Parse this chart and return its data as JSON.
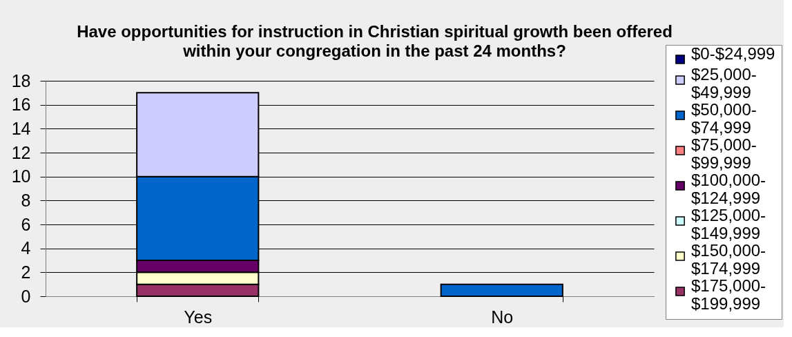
{
  "chart_data": {
    "type": "bar",
    "title": "Have opportunities for instruction in Christian spiritual growth been offered within your congregation in the past 24 months?",
    "categories": [
      "Yes",
      "No"
    ],
    "stacked": true,
    "series": [
      {
        "name": "$175,000-$199,999",
        "color": "#993366",
        "values": [
          1,
          0
        ]
      },
      {
        "name": "$150,000-$174,999",
        "color": "#ffffcc",
        "values": [
          1,
          0
        ]
      },
      {
        "name": "$125,000-$149,999",
        "color": "#ccffff",
        "values": [
          0,
          0
        ]
      },
      {
        "name": "$100,000-$124,999",
        "color": "#660066",
        "values": [
          1,
          0
        ]
      },
      {
        "name": "$75,000-$99,999",
        "color": "#ff8080",
        "values": [
          0,
          0
        ]
      },
      {
        "name": "$50,000-$74,999",
        "color": "#0066cc",
        "values": [
          7,
          1
        ]
      },
      {
        "name": "$25,000-$49,999",
        "color": "#ccccff",
        "values": [
          7,
          0
        ]
      },
      {
        "name": "$0-$24,999",
        "color": "#000080",
        "values": [
          0,
          0
        ]
      }
    ],
    "ylim": [
      0,
      18
    ],
    "yticks": [
      0,
      2,
      4,
      6,
      8,
      10,
      12,
      14,
      16,
      18
    ],
    "grid": "y",
    "legend": "right"
  }
}
